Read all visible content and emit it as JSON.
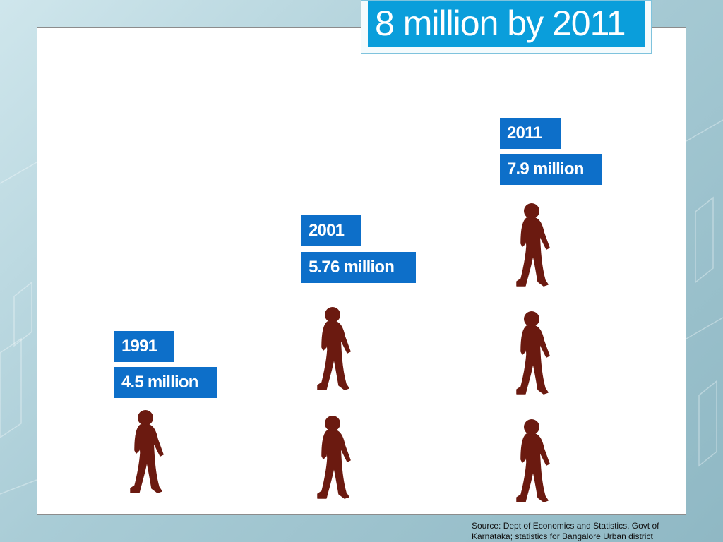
{
  "slide": {
    "title": "8 million by 2011",
    "source": "Source: Dept of Economics and Statistics, Govt of Karnataka; statistics for Bangalore Urban district"
  },
  "colors": {
    "label_bg": "#0d6fc9",
    "title_bg": "#0a9edb",
    "figure_fill": "#6b1a10"
  },
  "groups": [
    {
      "year": "1991",
      "population": "4.5 million",
      "figure_count": 1
    },
    {
      "year": "2001",
      "population": "5.76 million",
      "figure_count": 2
    },
    {
      "year": "2011",
      "population": "7.9 million",
      "figure_count": 3
    }
  ],
  "icons": {
    "person": "person-silhouette-icon"
  }
}
